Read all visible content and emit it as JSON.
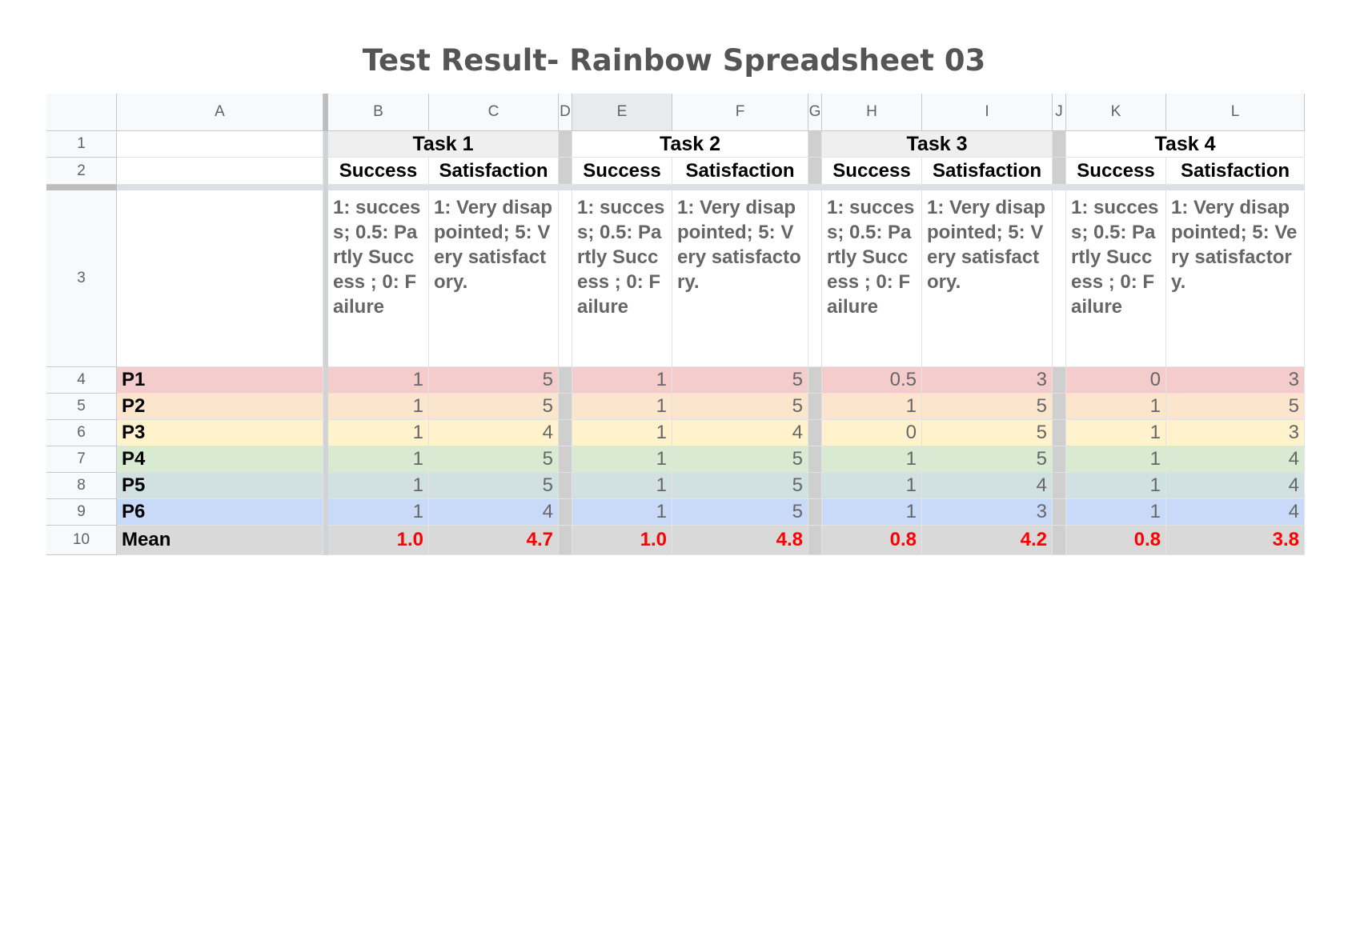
{
  "title": "Test Result- Rainbow Spreadsheet 03",
  "columns": [
    "A",
    "B",
    "C",
    "D",
    "E",
    "F",
    "G",
    "H",
    "I",
    "J",
    "K",
    "L"
  ],
  "row_numbers": [
    "1",
    "2",
    "3",
    "4",
    "5",
    "6",
    "7",
    "8",
    "9",
    "10"
  ],
  "tasks": [
    "Task 1",
    "Task 2",
    "Task 3",
    "Task 4"
  ],
  "subheaders": {
    "success": "Success",
    "satisfaction": "Satisfaction"
  },
  "descriptions": {
    "success": "1: success; 0.5: Partly Success ; 0: Failure",
    "satisfaction": "1: Very disappointed; 5: Very satisfactory."
  },
  "participants": [
    {
      "name": "P1",
      "color": "#f4cccc",
      "values": [
        "1",
        "5",
        "1",
        "5",
        "0.5",
        "3",
        "0",
        "3"
      ]
    },
    {
      "name": "P2",
      "color": "#fce5cd",
      "values": [
        "1",
        "5",
        "1",
        "5",
        "1",
        "5",
        "1",
        "5"
      ]
    },
    {
      "name": "P3",
      "color": "#fff2cc",
      "values": [
        "1",
        "4",
        "1",
        "4",
        "0",
        "5",
        "1",
        "3"
      ]
    },
    {
      "name": "P4",
      "color": "#d9ead3",
      "values": [
        "1",
        "5",
        "1",
        "5",
        "1",
        "5",
        "1",
        "4"
      ]
    },
    {
      "name": "P5",
      "color": "#d0e0e3",
      "values": [
        "1",
        "5",
        "1",
        "5",
        "1",
        "4",
        "1",
        "4"
      ]
    },
    {
      "name": "P6",
      "color": "#c9daf8",
      "values": [
        "1",
        "4",
        "1",
        "5",
        "1",
        "3",
        "1",
        "4"
      ]
    }
  ],
  "mean": {
    "name": "Mean",
    "color": "#d9d9d9",
    "values": [
      "1.0",
      "4.7",
      "1.0",
      "4.8",
      "0.8",
      "4.2",
      "0.8",
      "3.8"
    ]
  }
}
